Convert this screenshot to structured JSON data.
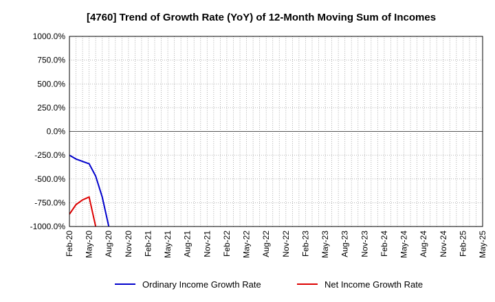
{
  "chart_data": {
    "type": "line",
    "title": "[4760]  Trend of Growth Rate (YoY) of 12-Month Moving Sum of Incomes",
    "xlabel": "",
    "ylabel": "",
    "ylim": [
      -1000,
      1000
    ],
    "yticks": [
      1000,
      750,
      500,
      250,
      0,
      -250,
      -500,
      -750,
      -1000
    ],
    "ytick_labels": [
      "1000.0%",
      "750.0%",
      "500.0%",
      "250.0%",
      "0.0%",
      "-250.0%",
      "-500.0%",
      "-750.0%",
      "-1000.0%"
    ],
    "x_months": [
      "Feb-20",
      "Mar-20",
      "Apr-20",
      "May-20",
      "Jun-20",
      "Jul-20",
      "Aug-20",
      "Sep-20",
      "Oct-20",
      "Nov-20",
      "Dec-20",
      "Jan-21",
      "Feb-21",
      "Mar-21",
      "Apr-21",
      "May-21",
      "Jun-21",
      "Jul-21",
      "Aug-21",
      "Sep-21",
      "Oct-21",
      "Nov-21",
      "Dec-21",
      "Jan-22",
      "Feb-22",
      "Mar-22",
      "Apr-22",
      "May-22",
      "Jun-22",
      "Jul-22",
      "Aug-22",
      "Sep-22",
      "Oct-22",
      "Nov-22",
      "Dec-22",
      "Jan-23",
      "Feb-23",
      "Mar-23",
      "Apr-23",
      "May-23",
      "Jun-23",
      "Jul-23",
      "Aug-23",
      "Sep-23",
      "Oct-23",
      "Nov-23",
      "Dec-23",
      "Jan-24",
      "Feb-24",
      "Mar-24",
      "Apr-24",
      "May-24",
      "Jun-24",
      "Jul-24",
      "Aug-24",
      "Sep-24",
      "Oct-24",
      "Nov-24",
      "Dec-24",
      "Jan-25",
      "Feb-25",
      "Mar-25",
      "Apr-25",
      "May-25"
    ],
    "xtick_labels": [
      "Feb-20",
      "May-20",
      "Aug-20",
      "Nov-20",
      "Feb-21",
      "May-21",
      "Aug-21",
      "Nov-21",
      "Feb-22",
      "May-22",
      "Aug-22",
      "Nov-22",
      "Feb-23",
      "May-23",
      "Aug-23",
      "Nov-23",
      "Feb-24",
      "May-24",
      "Aug-24",
      "Nov-24",
      "Feb-25",
      "May-25"
    ],
    "grid": true,
    "legend_position": "bottom",
    "series": [
      {
        "name": "Ordinary Income Growth Rate",
        "color": "#0000cc",
        "x": [
          "Feb-20",
          "Mar-20",
          "Apr-20",
          "May-20",
          "Jun-20",
          "Jul-20",
          "Aug-20"
        ],
        "values": [
          -250,
          -290,
          -315,
          -340,
          -470,
          -690,
          -1000
        ]
      },
      {
        "name": "Net Income Growth Rate",
        "color": "#dd0000",
        "x": [
          "Feb-20",
          "Mar-20",
          "Apr-20",
          "May-20",
          "Jun-20"
        ],
        "values": [
          -870,
          -770,
          -720,
          -690,
          -1000
        ]
      }
    ]
  }
}
